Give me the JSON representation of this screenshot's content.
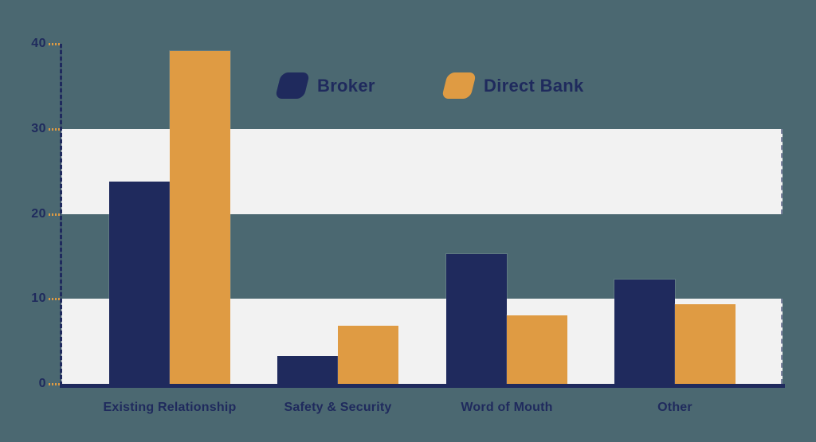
{
  "chart_data": {
    "type": "bar",
    "title": "",
    "xlabel": "",
    "ylabel": "",
    "categories": [
      "Existing Relationship",
      "Safety & Security",
      "Word of Mouth",
      "Other"
    ],
    "series": [
      {
        "name": "Broker",
        "color": "#1F2A5D",
        "values": [
          23.8,
          3.3,
          15.3,
          12.3
        ]
      },
      {
        "name": "Direct Bank",
        "color": "#DF9B43",
        "values": [
          39.2,
          6.8,
          8.1,
          9.4
        ]
      }
    ],
    "ylim": [
      0,
      40
    ],
    "yticks": [
      0,
      10,
      20,
      30,
      40
    ],
    "grid": "off",
    "legend_position": "top-center",
    "highlight_bands": [
      {
        "from": 0,
        "to": 10
      },
      {
        "from": 20,
        "to": 30
      }
    ],
    "band_color": "#F2F2F2",
    "background_color": "#4B6871",
    "axis_color": "#1F2A5D",
    "tick_dash_color": "#DF9B43",
    "label_color": "#1F2A5D"
  }
}
